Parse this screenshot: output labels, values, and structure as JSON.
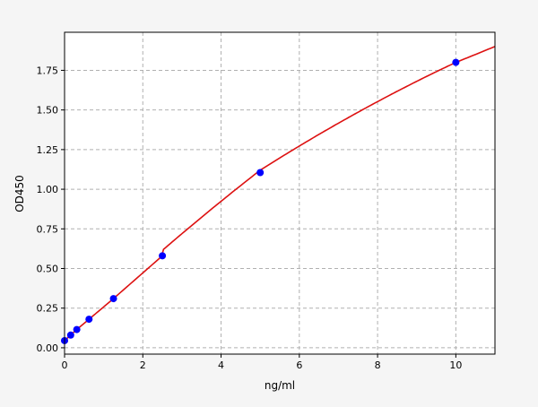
{
  "chart_data": {
    "type": "scatter",
    "title": "",
    "xlabel": "ng/ml",
    "ylabel": "OD450",
    "xlim": [
      0,
      11
    ],
    "ylim": [
      -0.04,
      1.99
    ],
    "xticks": [
      0,
      2,
      4,
      6,
      8,
      10
    ],
    "xtick_labels": [
      "0",
      "2",
      "4",
      "6",
      "8",
      "10"
    ],
    "yticks": [
      0,
      0.25,
      0.5,
      0.75,
      1.0,
      1.25,
      1.5,
      1.75
    ],
    "ytick_labels": [
      "0.00",
      "0.25",
      "0.50",
      "0.75",
      "1.00",
      "1.25",
      "1.50",
      "1.75"
    ],
    "grid": true,
    "points": {
      "x": [
        0,
        0.156,
        0.3125,
        0.625,
        1.25,
        2.5,
        5,
        10
      ],
      "y": [
        0.045,
        0.08,
        0.115,
        0.18,
        0.31,
        0.58,
        1.105,
        1.8
      ],
      "color": "#0000ff"
    },
    "fit_curve": {
      "color": "#dd1111"
    }
  }
}
